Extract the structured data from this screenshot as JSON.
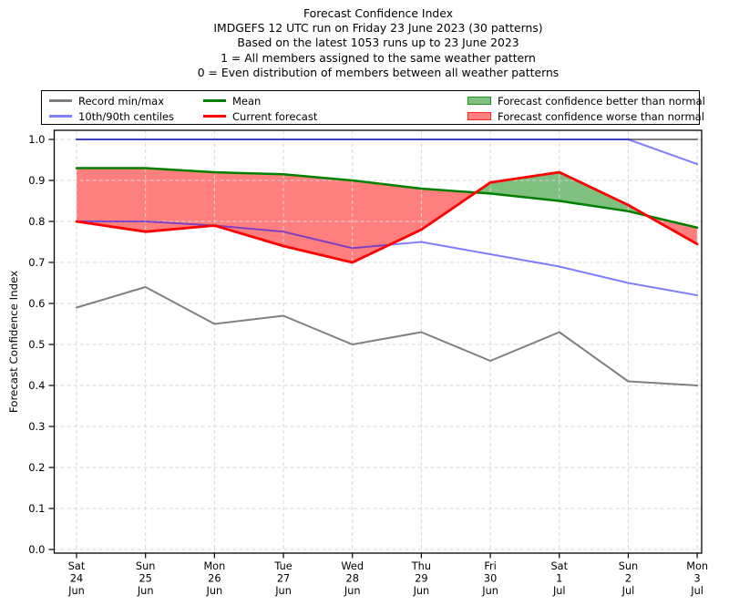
{
  "title": {
    "lines": [
      "Forecast Confidence Index",
      "IMDGEFS 12 UTC run on Friday 23 June 2023 (30 patterns)",
      "Based on the latest 1053 runs up to 23 June 2023",
      "1 = All members assigned to the same weather pattern",
      "0 = Even distribution of members between all weather patterns"
    ]
  },
  "legend": {
    "items": [
      {
        "id": "record-min-max",
        "label": "Record min/max",
        "swatch": "line",
        "color": "#808080",
        "opacity": 1
      },
      {
        "id": "centiles",
        "label": "10th/90th centiles",
        "swatch": "line",
        "color": "#0000ff",
        "opacity": 0.5
      },
      {
        "id": "mean",
        "label": "Mean",
        "swatch": "line",
        "color": "#008000",
        "opacity": 1
      },
      {
        "id": "current-forecast",
        "label": "Current forecast",
        "swatch": "line",
        "color": "#ff0000",
        "opacity": 1
      },
      {
        "id": "better",
        "label": "Forecast confidence better than normal",
        "swatch": "patch",
        "color": "#008000",
        "opacity": 0.5
      },
      {
        "id": "worse",
        "label": "Forecast confidence worse than normal",
        "swatch": "patch",
        "color": "#ff0000",
        "opacity": 0.5
      }
    ]
  },
  "chart_data": {
    "type": "line",
    "title": "Forecast Confidence Index",
    "ylabel": "Forecast Confidence Index",
    "ylim": [
      0,
      1
    ],
    "grid": true,
    "legend_position": "top",
    "yticks": [
      "0.0",
      "0.1",
      "0.2",
      "0.3",
      "0.4",
      "0.5",
      "0.6",
      "0.7",
      "0.8",
      "0.9",
      "1.0"
    ],
    "categories": [
      "Sat 24 Jun",
      "Sun 25 Jun",
      "Mon 26 Jun",
      "Tue 27 Jun",
      "Wed 28 Jun",
      "Thu 29 Jun",
      "Fri 30 Jun",
      "Sat 1 Jul",
      "Sun 2 Jul",
      "Mon 3 Jul"
    ],
    "xticks": [
      {
        "day": "Sat",
        "date": "24",
        "month": "Jun"
      },
      {
        "day": "Sun",
        "date": "25",
        "month": "Jun"
      },
      {
        "day": "Mon",
        "date": "26",
        "month": "Jun"
      },
      {
        "day": "Tue",
        "date": "27",
        "month": "Jun"
      },
      {
        "day": "Wed",
        "date": "28",
        "month": "Jun"
      },
      {
        "day": "Thu",
        "date": "29",
        "month": "Jun"
      },
      {
        "day": "Fri",
        "date": "30",
        "month": "Jun"
      },
      {
        "day": "Sat",
        "date": "1",
        "month": "Jul"
      },
      {
        "day": "Sun",
        "date": "2",
        "month": "Jul"
      },
      {
        "day": "Mon",
        "date": "3",
        "month": "Jul"
      }
    ],
    "series": [
      {
        "id": "record-max",
        "name": "Record max",
        "color": "#808080",
        "opacity": 1,
        "width": 2,
        "values": [
          1.0,
          1.0,
          1.0,
          1.0,
          1.0,
          1.0,
          1.0,
          1.0,
          1.0,
          1.0
        ]
      },
      {
        "id": "record-min",
        "name": "Record min",
        "color": "#808080",
        "opacity": 1,
        "width": 2,
        "values": [
          0.59,
          0.64,
          0.55,
          0.57,
          0.5,
          0.53,
          0.46,
          0.53,
          0.41,
          0.4
        ]
      },
      {
        "id": "centile-90",
        "name": "90th centile",
        "color": "#0000ff",
        "opacity": 0.5,
        "width": 2,
        "values": [
          1.0,
          1.0,
          1.0,
          1.0,
          1.0,
          1.0,
          1.0,
          1.0,
          1.0,
          0.94
        ]
      },
      {
        "id": "centile-10",
        "name": "10th centile",
        "color": "#0000ff",
        "opacity": 0.5,
        "width": 2,
        "values": [
          0.8,
          0.8,
          0.79,
          0.775,
          0.735,
          0.75,
          0.72,
          0.69,
          0.65,
          0.62
        ]
      },
      {
        "id": "mean",
        "name": "Mean",
        "color": "#008000",
        "opacity": 1,
        "width": 2.5,
        "values": [
          0.93,
          0.93,
          0.92,
          0.915,
          0.9,
          0.88,
          0.868,
          0.85,
          0.825,
          0.785
        ]
      },
      {
        "id": "current-forecast",
        "name": "Current forecast",
        "color": "#ff0000",
        "opacity": 1,
        "width": 2.8,
        "values": [
          0.8,
          0.775,
          0.79,
          0.74,
          0.7,
          0.78,
          0.895,
          0.92,
          0.84,
          0.745
        ]
      }
    ],
    "fill_between": {
      "upper": "mean",
      "lower": "current-forecast",
      "better_color": "#008000",
      "worse_color": "#ff0000",
      "alpha": 0.5
    }
  }
}
